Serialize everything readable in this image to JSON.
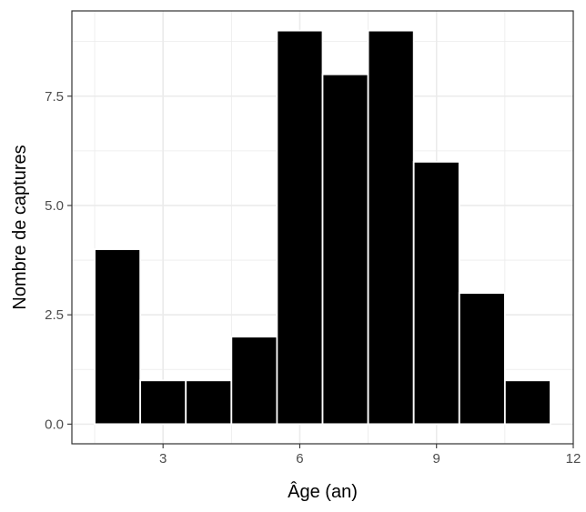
{
  "chart_data": {
    "type": "bar",
    "title": "",
    "xlabel": "Âge (an)",
    "ylabel": "Nombre de captures",
    "bins": [
      {
        "x0": 1.5,
        "x1": 2.5,
        "value": 4
      },
      {
        "x0": 2.5,
        "x1": 3.5,
        "value": 1
      },
      {
        "x0": 3.5,
        "x1": 4.5,
        "value": 1
      },
      {
        "x0": 4.5,
        "x1": 5.5,
        "value": 2
      },
      {
        "x0": 5.5,
        "x1": 6.5,
        "value": 9
      },
      {
        "x0": 6.5,
        "x1": 7.5,
        "value": 8
      },
      {
        "x0": 7.5,
        "x1": 8.5,
        "value": 9
      },
      {
        "x0": 8.5,
        "x1": 9.5,
        "value": 6
      },
      {
        "x0": 9.5,
        "x1": 10.5,
        "value": 3
      },
      {
        "x0": 10.5,
        "x1": 11.5,
        "value": 1
      }
    ],
    "xlim": [
      1.0,
      12.0
    ],
    "ylim": [
      -0.45,
      9.45
    ],
    "x_ticks": [
      3,
      6,
      9,
      12
    ],
    "x_tick_labels": [
      "3",
      "6",
      "9",
      "12"
    ],
    "y_ticks": [
      0,
      2.5,
      5,
      7.5
    ],
    "y_tick_labels": [
      "0.0",
      "2.5",
      "5.0",
      "7.5"
    ],
    "grid": true,
    "colors": {
      "bar_fill": "#000000",
      "bar_stroke": "#ffffff",
      "grid": "#ebebeb",
      "panel_border": "#333333"
    }
  }
}
